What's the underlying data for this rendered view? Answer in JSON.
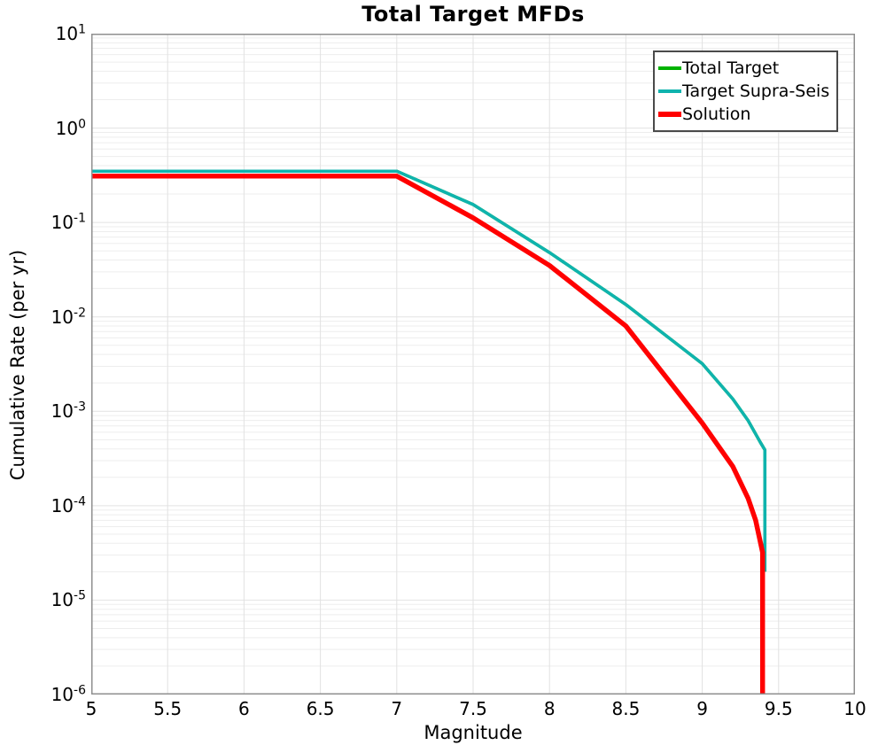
{
  "figure": {
    "title": "Total Target MFDs"
  },
  "chart_data": {
    "type": "line",
    "title": "Total Target MFDs",
    "xlabel": "Magnitude",
    "ylabel": "Cumulative Rate (per yr)",
    "x_axis": {
      "min": 5,
      "max": 10,
      "tick_values": [
        5,
        5.5,
        6,
        6.5,
        7,
        7.5,
        8,
        8.5,
        9,
        9.5,
        10
      ],
      "tick_labels": [
        "5",
        "5.5",
        "6",
        "6.5",
        "7",
        "7.5",
        "8",
        "8.5",
        "9",
        "9.5",
        "10"
      ]
    },
    "y_axis": {
      "scale": "log",
      "min_exp": -6,
      "max_exp": 1,
      "tick_exponents": [
        1,
        0,
        -1,
        -2,
        -3,
        -4,
        -5,
        -6
      ]
    },
    "grid": {
      "show": true,
      "major_color": "#e2e2e2",
      "minor_color": "#ededed",
      "spine_color": "#8f8f8f"
    },
    "legend": {
      "position": "top-right",
      "entries": [
        "Total Target",
        "Target Supra-Seis",
        "Solution"
      ]
    },
    "series": [
      {
        "name": "Total Target",
        "color": "#00B200",
        "line_width": 3.5,
        "points": [
          [
            5,
            0.35
          ],
          [
            7,
            0.35
          ],
          [
            7.5,
            0.155
          ],
          [
            8,
            0.048
          ],
          [
            8.5,
            0.0135
          ],
          [
            9,
            0.0032
          ],
          [
            9.2,
            0.00135
          ],
          [
            9.3,
            0.0008
          ],
          [
            9.38,
            0.00047
          ],
          [
            9.41,
            0.00039
          ],
          [
            9.41,
            2e-05
          ]
        ]
      },
      {
        "name": "Target Supra-Seis",
        "color": "#0FB3AE",
        "line_width": 3.5,
        "points": [
          [
            5,
            0.35
          ],
          [
            7,
            0.35
          ],
          [
            7.5,
            0.155
          ],
          [
            8,
            0.048
          ],
          [
            8.5,
            0.0135
          ],
          [
            9,
            0.0032
          ],
          [
            9.2,
            0.00135
          ],
          [
            9.3,
            0.0008
          ],
          [
            9.38,
            0.00047
          ],
          [
            9.41,
            0.00039
          ],
          [
            9.41,
            2e-05
          ]
        ]
      },
      {
        "name": "Solution",
        "color": "#FF0000",
        "line_width": 5.5,
        "points": [
          [
            5,
            0.31
          ],
          [
            7,
            0.31
          ],
          [
            7.5,
            0.112
          ],
          [
            8,
            0.035
          ],
          [
            8.5,
            0.008
          ],
          [
            9,
            0.00075
          ],
          [
            9.2,
            0.00026
          ],
          [
            9.3,
            0.00012
          ],
          [
            9.35,
            7e-05
          ],
          [
            9.395,
            3.2e-05
          ],
          [
            9.395,
            8e-07
          ]
        ]
      }
    ]
  }
}
